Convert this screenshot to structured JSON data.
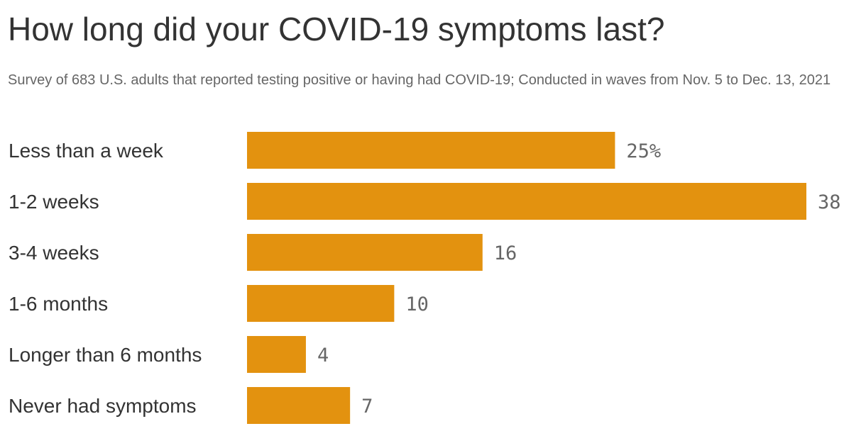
{
  "chart_data": {
    "type": "bar",
    "orientation": "horizontal",
    "title": "How long did your COVID-19 symptoms last?",
    "subtitle": "Survey of 683 U.S. adults that reported testing positive or having had COVID-19; Conducted in waves from Nov. 5 to Dec. 13, 2021",
    "categories": [
      "Less than a week",
      "1-2 weeks",
      "3-4 weeks",
      "1-6 months",
      "Longer than 6 months",
      "Never had symptoms"
    ],
    "values": [
      25,
      38,
      16,
      10,
      4,
      7
    ],
    "value_labels": [
      "25%",
      "38",
      "16",
      "10",
      "4",
      "7"
    ],
    "xlim": [
      0,
      38
    ],
    "grid": false,
    "colors": {
      "bar": "#e3920f"
    }
  }
}
